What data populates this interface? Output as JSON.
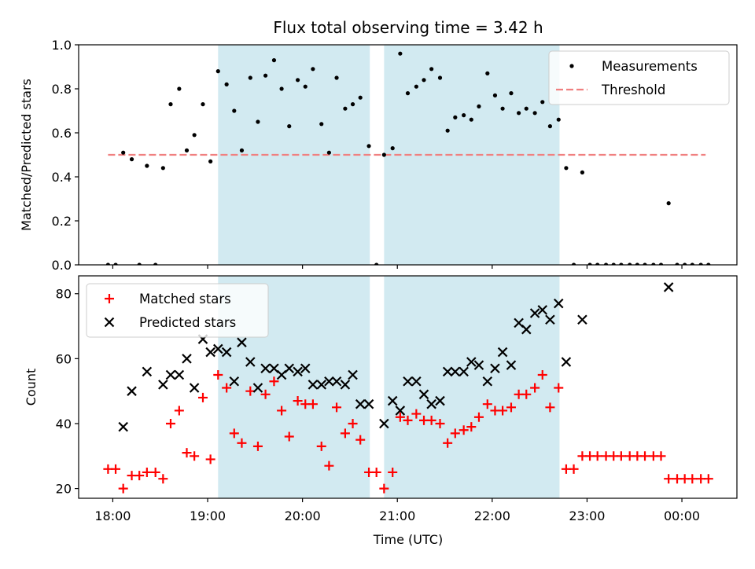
{
  "chart_data": {
    "type": "scatter",
    "title": "Flux total observing time = 3.42 h",
    "xlabel": "Time (UTC)",
    "x_unit": "hours since 18:00 UTC",
    "x_ticks": [
      {
        "value": 0,
        "label": "18:00"
      },
      {
        "value": 1,
        "label": "19:00"
      },
      {
        "value": 2,
        "label": "20:00"
      },
      {
        "value": 3,
        "label": "21:00"
      },
      {
        "value": 4,
        "label": "22:00"
      },
      {
        "value": 5,
        "label": "23:00"
      },
      {
        "value": 6,
        "label": "00:00"
      }
    ],
    "xlim": [
      -0.36,
      6.58
    ],
    "shaded_intervals": [
      [
        1.11,
        2.71
      ],
      [
        2.86,
        4.71
      ]
    ],
    "shade_color": "#add8e6",
    "panels": [
      {
        "id": "ratio",
        "ylabel": "Matched/Predicted stars",
        "ylim": [
          0,
          1.0
        ],
        "y_ticks": [
          "0.0",
          "0.2",
          "0.4",
          "0.6",
          "0.8",
          "1.0"
        ],
        "legend": {
          "position": "upper right",
          "entries": [
            {
              "label": "Measurements",
              "marker": "dot",
              "color": "#000000"
            },
            {
              "label": "Threshold",
              "marker": "dashed-line",
              "color": "#f08080"
            }
          ]
        },
        "threshold": {
          "y": 0.5,
          "x_range": [
            -0.05,
            6.25
          ],
          "color": "#f08080"
        },
        "series": [
          {
            "name": "Measurements",
            "color": "#000000",
            "points": [
              [
                -0.05,
                0.0
              ],
              [
                0.03,
                0.0
              ],
              [
                0.11,
                0.51
              ],
              [
                0.2,
                0.48
              ],
              [
                0.28,
                0.0
              ],
              [
                0.36,
                0.45
              ],
              [
                0.45,
                0.0
              ],
              [
                0.53,
                0.44
              ],
              [
                0.61,
                0.73
              ],
              [
                0.7,
                0.8
              ],
              [
                0.78,
                0.52
              ],
              [
                0.86,
                0.59
              ],
              [
                0.95,
                0.73
              ],
              [
                1.03,
                0.47
              ],
              [
                1.11,
                0.88
              ],
              [
                1.2,
                0.82
              ],
              [
                1.28,
                0.7
              ],
              [
                1.36,
                0.52
              ],
              [
                1.45,
                0.85
              ],
              [
                1.53,
                0.65
              ],
              [
                1.61,
                0.86
              ],
              [
                1.7,
                0.93
              ],
              [
                1.78,
                0.8
              ],
              [
                1.86,
                0.63
              ],
              [
                1.95,
                0.84
              ],
              [
                2.03,
                0.81
              ],
              [
                2.11,
                0.89
              ],
              [
                2.2,
                0.64
              ],
              [
                2.28,
                0.51
              ],
              [
                2.36,
                0.85
              ],
              [
                2.45,
                0.71
              ],
              [
                2.53,
                0.73
              ],
              [
                2.61,
                0.76
              ],
              [
                2.7,
                0.54
              ],
              [
                2.78,
                0.0
              ],
              [
                2.86,
                0.5
              ],
              [
                2.95,
                0.53
              ],
              [
                3.03,
                0.96
              ],
              [
                3.11,
                0.78
              ],
              [
                3.2,
                0.81
              ],
              [
                3.28,
                0.84
              ],
              [
                3.36,
                0.89
              ],
              [
                3.45,
                0.85
              ],
              [
                3.53,
                0.61
              ],
              [
                3.61,
                0.67
              ],
              [
                3.7,
                0.68
              ],
              [
                3.78,
                0.66
              ],
              [
                3.86,
                0.72
              ],
              [
                3.95,
                0.87
              ],
              [
                4.03,
                0.77
              ],
              [
                4.11,
                0.71
              ],
              [
                4.2,
                0.78
              ],
              [
                4.28,
                0.69
              ],
              [
                4.36,
                0.71
              ],
              [
                4.45,
                0.69
              ],
              [
                4.53,
                0.74
              ],
              [
                4.61,
                0.63
              ],
              [
                4.7,
                0.66
              ],
              [
                4.78,
                0.44
              ],
              [
                4.86,
                0.0
              ],
              [
                4.95,
                0.42
              ],
              [
                5.03,
                0.0
              ],
              [
                5.11,
                0.0
              ],
              [
                5.2,
                0.0
              ],
              [
                5.28,
                0.0
              ],
              [
                5.36,
                0.0
              ],
              [
                5.45,
                0.0
              ],
              [
                5.53,
                0.0
              ],
              [
                5.61,
                0.0
              ],
              [
                5.7,
                0.0
              ],
              [
                5.78,
                0.0
              ],
              [
                5.86,
                0.28
              ],
              [
                5.95,
                0.0
              ],
              [
                6.03,
                0.0
              ],
              [
                6.11,
                0.0
              ],
              [
                6.2,
                0.0
              ],
              [
                6.28,
                0.0
              ]
            ]
          }
        ]
      },
      {
        "id": "counts",
        "ylabel": "Count",
        "ylim": [
          17,
          85.5
        ],
        "y_ticks": [
          "20",
          "40",
          "60",
          "80"
        ],
        "legend": {
          "position": "upper left",
          "entries": [
            {
              "label": "Matched stars",
              "marker": "plus",
              "color": "#ff0000"
            },
            {
              "label": "Predicted stars",
              "marker": "x",
              "color": "#000000"
            }
          ]
        },
        "series": [
          {
            "name": "Matched stars",
            "color": "#ff0000",
            "marker": "plus",
            "points": [
              [
                -0.05,
                26
              ],
              [
                0.03,
                26
              ],
              [
                0.11,
                20
              ],
              [
                0.2,
                24
              ],
              [
                0.28,
                24
              ],
              [
                0.36,
                25
              ],
              [
                0.45,
                25
              ],
              [
                0.53,
                23
              ],
              [
                0.61,
                40
              ],
              [
                0.7,
                44
              ],
              [
                0.78,
                31
              ],
              [
                0.86,
                30
              ],
              [
                0.95,
                48
              ],
              [
                1.03,
                29
              ],
              [
                1.11,
                55
              ],
              [
                1.2,
                51
              ],
              [
                1.28,
                37
              ],
              [
                1.36,
                34
              ],
              [
                1.45,
                50
              ],
              [
                1.53,
                33
              ],
              [
                1.61,
                49
              ],
              [
                1.7,
                53
              ],
              [
                1.78,
                44
              ],
              [
                1.86,
                36
              ],
              [
                1.95,
                47
              ],
              [
                2.03,
                46
              ],
              [
                2.11,
                46
              ],
              [
                2.2,
                33
              ],
              [
                2.28,
                27
              ],
              [
                2.36,
                45
              ],
              [
                2.45,
                37
              ],
              [
                2.53,
                40
              ],
              [
                2.61,
                35
              ],
              [
                2.7,
                25
              ],
              [
                2.78,
                25
              ],
              [
                2.86,
                20
              ],
              [
                2.95,
                25
              ],
              [
                3.03,
                42
              ],
              [
                3.11,
                41
              ],
              [
                3.2,
                43
              ],
              [
                3.28,
                41
              ],
              [
                3.36,
                41
              ],
              [
                3.45,
                40
              ],
              [
                3.53,
                34
              ],
              [
                3.61,
                37
              ],
              [
                3.7,
                38
              ],
              [
                3.78,
                39
              ],
              [
                3.86,
                42
              ],
              [
                3.95,
                46
              ],
              [
                4.03,
                44
              ],
              [
                4.11,
                44
              ],
              [
                4.2,
                45
              ],
              [
                4.28,
                49
              ],
              [
                4.36,
                49
              ],
              [
                4.45,
                51
              ],
              [
                4.53,
                55
              ],
              [
                4.61,
                45
              ],
              [
                4.7,
                51
              ],
              [
                4.78,
                26
              ],
              [
                4.86,
                26
              ],
              [
                4.95,
                30
              ],
              [
                5.03,
                30
              ],
              [
                5.11,
                30
              ],
              [
                5.2,
                30
              ],
              [
                5.28,
                30
              ],
              [
                5.36,
                30
              ],
              [
                5.45,
                30
              ],
              [
                5.53,
                30
              ],
              [
                5.61,
                30
              ],
              [
                5.7,
                30
              ],
              [
                5.78,
                30
              ],
              [
                5.86,
                23
              ],
              [
                5.95,
                23
              ],
              [
                6.03,
                23
              ],
              [
                6.11,
                23
              ],
              [
                6.2,
                23
              ],
              [
                6.28,
                23
              ]
            ]
          },
          {
            "name": "Predicted stars",
            "color": "#000000",
            "marker": "x",
            "points": [
              [
                0.11,
                39
              ],
              [
                0.2,
                50
              ],
              [
                0.36,
                56
              ],
              [
                0.53,
                52
              ],
              [
                0.61,
                55
              ],
              [
                0.7,
                55
              ],
              [
                0.78,
                60
              ],
              [
                0.86,
                51
              ],
              [
                0.95,
                66
              ],
              [
                1.03,
                62
              ],
              [
                1.11,
                63
              ],
              [
                1.2,
                62
              ],
              [
                1.28,
                53
              ],
              [
                1.36,
                65
              ],
              [
                1.45,
                59
              ],
              [
                1.53,
                51
              ],
              [
                1.61,
                57
              ],
              [
                1.7,
                57
              ],
              [
                1.78,
                55
              ],
              [
                1.86,
                57
              ],
              [
                1.95,
                56
              ],
              [
                2.03,
                57
              ],
              [
                2.11,
                52
              ],
              [
                2.2,
                52
              ],
              [
                2.28,
                53
              ],
              [
                2.36,
                53
              ],
              [
                2.45,
                52
              ],
              [
                2.53,
                55
              ],
              [
                2.61,
                46
              ],
              [
                2.7,
                46
              ],
              [
                2.86,
                40
              ],
              [
                2.95,
                47
              ],
              [
                3.03,
                44
              ],
              [
                3.11,
                53
              ],
              [
                3.2,
                53
              ],
              [
                3.28,
                49
              ],
              [
                3.36,
                46
              ],
              [
                3.45,
                47
              ],
              [
                3.53,
                56
              ],
              [
                3.61,
                56
              ],
              [
                3.7,
                56
              ],
              [
                3.78,
                59
              ],
              [
                3.86,
                58
              ],
              [
                3.95,
                53
              ],
              [
                4.03,
                57
              ],
              [
                4.11,
                62
              ],
              [
                4.2,
                58
              ],
              [
                4.28,
                71
              ],
              [
                4.36,
                69
              ],
              [
                4.45,
                74
              ],
              [
                4.53,
                75
              ],
              [
                4.61,
                72
              ],
              [
                4.7,
                77
              ],
              [
                4.78,
                59
              ],
              [
                4.95,
                72
              ],
              [
                5.86,
                82
              ]
            ]
          }
        ]
      }
    ]
  }
}
